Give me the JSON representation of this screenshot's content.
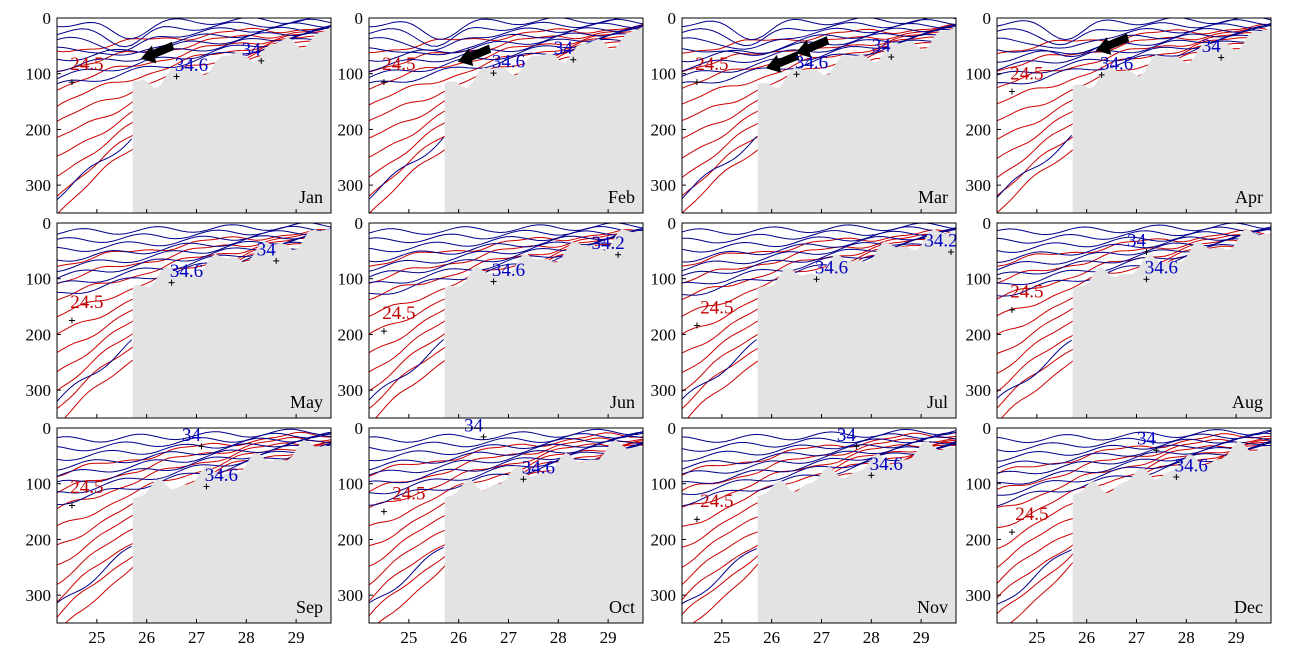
{
  "colors": {
    "sigma_contours": "#cc0000",
    "salinity_contours": "#00008b",
    "label_red": "#c00000",
    "label_blue": "#0000c0",
    "topography": "#e3e3e3",
    "arrow": "#000000"
  },
  "chart_data": {
    "type": "contour",
    "layout": "3 rows x 4 columns of panels",
    "x_ticks": [
      "25",
      "26",
      "27",
      "28",
      "29"
    ],
    "x_range": [
      24.2,
      29.7
    ],
    "y_ticks": [
      "0",
      "100",
      "200",
      "300"
    ],
    "y_range": [
      0,
      350
    ],
    "y_inverted": true,
    "panels": [
      {
        "month": "Jan",
        "red_label": "24.5",
        "red_label_at": [
          24.8,
          93
        ],
        "blue_labels": [
          {
            "text": "34",
            "at": [
              28.1,
              67
            ]
          },
          {
            "text": "34.6",
            "at": [
              26.9,
              95
            ]
          }
        ],
        "arrows": [
          {
            "at": [
              26.3,
              53
            ]
          }
        ]
      },
      {
        "month": "Feb",
        "red_label": "24.5",
        "red_label_at": [
          24.8,
          93
        ],
        "blue_labels": [
          {
            "text": "34",
            "at": [
              28.1,
              65
            ]
          },
          {
            "text": "34.6",
            "at": [
              27.0,
              89
            ]
          }
        ],
        "arrows": [
          {
            "at": [
              26.4,
              58
            ]
          }
        ]
      },
      {
        "month": "Mar",
        "red_label": "24.5",
        "red_label_at": [
          24.8,
          93
        ],
        "blue_labels": [
          {
            "text": "34",
            "at": [
              28.2,
              60
            ]
          },
          {
            "text": "34.6",
            "at": [
              26.8,
              91
            ]
          }
        ],
        "arrows": [
          {
            "at": [
              26.3,
              70
            ]
          },
          {
            "at": [
              26.9,
              43
            ]
          }
        ]
      },
      {
        "month": "Apr",
        "red_label": "24.5",
        "red_label_at": [
          24.8,
          110
        ],
        "blue_labels": [
          {
            "text": "34",
            "at": [
              28.5,
              61
            ]
          },
          {
            "text": "34.6",
            "at": [
              26.6,
              92
            ]
          }
        ],
        "arrows": [
          {
            "at": [
              26.6,
              38
            ]
          }
        ]
      },
      {
        "month": "May",
        "red_label": "24.5",
        "red_label_at": [
          24.8,
          153
        ],
        "blue_labels": [
          {
            "text": "34",
            "at": [
              28.4,
              58
            ]
          },
          {
            "text": "34.6",
            "at": [
              26.8,
              97
            ]
          }
        ],
        "arrows": []
      },
      {
        "month": "Jun",
        "red_label": "24.5",
        "red_label_at": [
          24.8,
          172
        ],
        "blue_labels": [
          {
            "text": "34.2",
            "at": [
              29.0,
              47
            ]
          },
          {
            "text": "34.6",
            "at": [
              27.0,
              95
            ]
          }
        ],
        "arrows": []
      },
      {
        "month": "Jul",
        "red_label": "24.5",
        "red_label_at": [
          24.9,
          162
        ],
        "blue_labels": [
          {
            "text": "34.2",
            "at": [
              29.4,
              42
            ]
          },
          {
            "text": "34.6",
            "at": [
              27.2,
              91
            ]
          }
        ],
        "arrows": []
      },
      {
        "month": "Aug",
        "red_label": "24.5",
        "red_label_at": [
          24.8,
          134
        ],
        "blue_labels": [
          {
            "text": "34",
            "at": [
              27.0,
              42
            ]
          },
          {
            "text": "34.6",
            "at": [
              27.5,
              91
            ]
          }
        ],
        "arrows": []
      },
      {
        "month": "Sep",
        "red_label": "24.5",
        "red_label_at": [
          24.8,
          117
        ],
        "blue_labels": [
          {
            "text": "34",
            "at": [
              26.9,
              23
            ]
          },
          {
            "text": "34.6",
            "at": [
              27.5,
              95
            ]
          }
        ],
        "arrows": []
      },
      {
        "month": "Oct",
        "red_label": "24.5",
        "red_label_at": [
          25.0,
          128
        ],
        "blue_labels": [
          {
            "text": "34",
            "at": [
              26.3,
              6
            ]
          },
          {
            "text": "34.6",
            "at": [
              27.6,
              82
            ]
          }
        ],
        "arrows": []
      },
      {
        "month": "Nov",
        "red_label": "24.5",
        "red_label_at": [
          24.9,
          142
        ],
        "blue_labels": [
          {
            "text": "34",
            "at": [
              27.5,
              23
            ]
          },
          {
            "text": "34.6",
            "at": [
              28.3,
              75
            ]
          }
        ],
        "arrows": []
      },
      {
        "month": "Dec",
        "red_label": "24.5",
        "red_label_at": [
          24.9,
          165
        ],
        "blue_labels": [
          {
            "text": "34",
            "at": [
              27.2,
              30
            ]
          },
          {
            "text": "34.6",
            "at": [
              28.1,
              78
            ]
          }
        ],
        "arrows": []
      }
    ]
  }
}
